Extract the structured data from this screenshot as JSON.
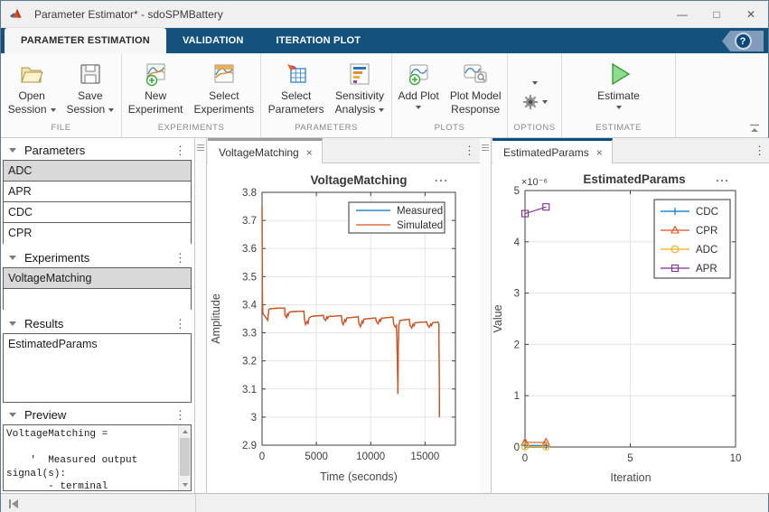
{
  "window": {
    "title": "Parameter Estimator* - sdoSPMBattery",
    "controls": {
      "minimize": "—",
      "maximize": "□",
      "close": "✕"
    }
  },
  "icons": {
    "kebab": "⋮",
    "close": "×",
    "dots": "...",
    "help": "?"
  },
  "ribbon": {
    "tabs": [
      "PARAMETER ESTIMATION",
      "VALIDATION",
      "ITERATION PLOT"
    ]
  },
  "toolbar": {
    "groups": [
      {
        "label": "FILE",
        "buttons": [
          {
            "line1": "Open",
            "line2": "Session"
          },
          {
            "line1": "Save",
            "line2": "Session"
          }
        ]
      },
      {
        "label": "EXPERIMENTS",
        "buttons": [
          {
            "line1": "New",
            "line2": "Experiment"
          },
          {
            "line1": "Select",
            "line2": "Experiments"
          }
        ]
      },
      {
        "label": "PARAMETERS",
        "buttons": [
          {
            "line1": "Select",
            "line2": "Parameters"
          },
          {
            "line1": "Sensitivity",
            "line2": "Analysis"
          }
        ]
      },
      {
        "label": "PLOTS",
        "buttons": [
          {
            "line1": "Add Plot",
            "line2": ""
          },
          {
            "line1": "Plot Model",
            "line2": "Response"
          }
        ]
      },
      {
        "label": "OPTIONS",
        "buttons": []
      },
      {
        "label": "ESTIMATE",
        "buttons": [
          {
            "line1": "Estimate",
            "line2": ""
          }
        ]
      }
    ]
  },
  "left_panel": {
    "parameters": {
      "title": "Parameters",
      "items": [
        "ADC",
        "APR",
        "CDC",
        "CPR"
      ],
      "selected": "ADC"
    },
    "experiments": {
      "title": "Experiments",
      "items": [
        "VoltageMatching",
        ""
      ],
      "selected": "VoltageMatching"
    },
    "results": {
      "title": "Results",
      "items": [
        "EstimatedParams"
      ]
    },
    "preview": {
      "title": "Preview",
      "text": "VoltageMatching =\n\n    '  Measured output\nsignal(s):\n       - terminal"
    }
  },
  "center_panel": {
    "tab": "VoltageMatching"
  },
  "right_panel": {
    "tab": "EstimatedParams"
  },
  "chart_data": [
    {
      "type": "line",
      "title": "VoltageMatching",
      "xlabel": "Time (seconds)",
      "ylabel": "Amplitude",
      "xlim": [
        0,
        17800
      ],
      "ylim": [
        2.9,
        3.8
      ],
      "xticks": [
        0,
        5000,
        10000,
        15000
      ],
      "yticks": [
        2.9,
        3,
        3.1,
        3.2,
        3.3,
        3.4,
        3.5,
        3.6,
        3.7,
        3.8
      ],
      "grid": true,
      "legend_position": "northeast",
      "points": [
        [
          0,
          3.75
        ],
        [
          20,
          3.52
        ],
        [
          40,
          3.4
        ],
        [
          80,
          3.368
        ],
        [
          250,
          3.36
        ],
        [
          430,
          3.35
        ],
        [
          520,
          3.345
        ],
        [
          560,
          3.36
        ],
        [
          620,
          3.383
        ],
        [
          800,
          3.386
        ],
        [
          1600,
          3.388
        ],
        [
          2080,
          3.388
        ],
        [
          2120,
          3.362
        ],
        [
          2250,
          3.354
        ],
        [
          2320,
          3.367
        ],
        [
          2400,
          3.361
        ],
        [
          2500,
          3.373
        ],
        [
          2700,
          3.375
        ],
        [
          3850,
          3.377
        ],
        [
          3900,
          3.35
        ],
        [
          4000,
          3.329
        ],
        [
          4150,
          3.341
        ],
        [
          4230,
          3.334
        ],
        [
          4330,
          3.354
        ],
        [
          4600,
          3.359
        ],
        [
          5650,
          3.362
        ],
        [
          5700,
          3.351
        ],
        [
          5850,
          3.344
        ],
        [
          5960,
          3.357
        ],
        [
          6040,
          3.351
        ],
        [
          6140,
          3.358
        ],
        [
          7300,
          3.361
        ],
        [
          7360,
          3.338
        ],
        [
          7480,
          3.329
        ],
        [
          7620,
          3.346
        ],
        [
          7700,
          3.34
        ],
        [
          7800,
          3.353
        ],
        [
          8850,
          3.357
        ],
        [
          8920,
          3.333
        ],
        [
          9060,
          3.322
        ],
        [
          9200,
          3.341
        ],
        [
          9280,
          3.335
        ],
        [
          9380,
          3.349
        ],
        [
          10450,
          3.353
        ],
        [
          10520,
          3.341
        ],
        [
          10680,
          3.332
        ],
        [
          10820,
          3.347
        ],
        [
          10900,
          3.341
        ],
        [
          11000,
          3.352
        ],
        [
          12050,
          3.356
        ],
        [
          12120,
          3.33
        ],
        [
          12260,
          3.32
        ],
        [
          12380,
          3.327
        ],
        [
          12460,
          3.2
        ],
        [
          12500,
          3.082
        ],
        [
          12540,
          3.25
        ],
        [
          12600,
          3.33
        ],
        [
          12700,
          3.344
        ],
        [
          13550,
          3.348
        ],
        [
          13620,
          3.327
        ],
        [
          13780,
          3.317
        ],
        [
          13900,
          3.331
        ],
        [
          13980,
          3.325
        ],
        [
          14080,
          3.336
        ],
        [
          15150,
          3.339
        ],
        [
          15220,
          3.329
        ],
        [
          15380,
          3.32
        ],
        [
          15520,
          3.331
        ],
        [
          15600,
          3.326
        ],
        [
          15700,
          3.336
        ],
        [
          16200,
          3.338
        ],
        [
          16280,
          3.33
        ],
        [
          16310,
          3.15
        ],
        [
          16330,
          3
        ]
      ],
      "series": [
        {
          "name": "Measured",
          "color": "#0072BD",
          "points": "shared"
        },
        {
          "name": "Simulated",
          "color": "#D95319",
          "points": "shared"
        }
      ]
    },
    {
      "type": "line",
      "title": "EstimatedParams",
      "xlabel": "Iteration",
      "ylabel": "Value",
      "y_multiplier": "×10⁻⁶",
      "xlim": [
        0,
        10
      ],
      "ylim": [
        0,
        5
      ],
      "xticks": [
        0,
        5,
        10
      ],
      "yticks": [
        0,
        1,
        2,
        3,
        4,
        5
      ],
      "grid": true,
      "legend_position": "northeast",
      "x": [
        0,
        1
      ],
      "series": [
        {
          "name": "CDC",
          "color": "#0072BD",
          "marker": "plus",
          "values": [
            0.03,
            0.03
          ]
        },
        {
          "name": "CPR",
          "color": "#D95319",
          "marker": "triangle",
          "values": [
            0.09,
            0.09
          ]
        },
        {
          "name": "ADC",
          "color": "#EDB120",
          "marker": "circle",
          "values": [
            0.01,
            0.01
          ]
        },
        {
          "name": "APR",
          "color": "#7E2F8E",
          "marker": "square",
          "values": [
            4.55,
            4.68
          ]
        }
      ]
    }
  ]
}
